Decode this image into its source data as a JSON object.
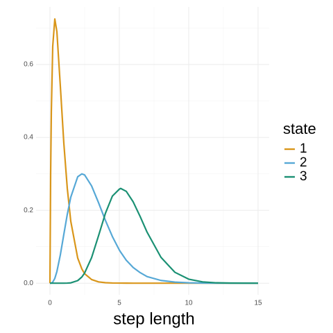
{
  "chart_data": {
    "type": "line",
    "xlabel": "step length",
    "legend_title": "state",
    "x": [
      0,
      0.05,
      0.1,
      0.2,
      0.35,
      0.5,
      0.75,
      1,
      1.25,
      1.5,
      2,
      2.3,
      2.5,
      3,
      3.5,
      4,
      4.5,
      5,
      5.1,
      5.5,
      6,
      6.5,
      7,
      8,
      9,
      10,
      11,
      12,
      13,
      15
    ],
    "series": [
      {
        "name": "1",
        "color": "#d9961a",
        "values": [
          0,
          0.3,
          0.47,
          0.65,
          0.725,
          0.69,
          0.54,
          0.384,
          0.26,
          0.17,
          0.069,
          0.039,
          0.026,
          0.01,
          0.0036,
          0.0013,
          0.0005,
          0.0002,
          0.0002,
          0.0001,
          0,
          0,
          0,
          0,
          0,
          0,
          0,
          0,
          0,
          0
        ]
      },
      {
        "name": "2",
        "color": "#56a8d6",
        "values": [
          0,
          0,
          0.0004,
          0.003,
          0.013,
          0.032,
          0.078,
          0.134,
          0.189,
          0.236,
          0.292,
          0.3,
          0.297,
          0.267,
          0.221,
          0.172,
          0.128,
          0.091,
          0.085,
          0.063,
          0.043,
          0.029,
          0.018,
          0.0075,
          0.003,
          0.001,
          0.0003,
          0.0001,
          0,
          0
        ]
      },
      {
        "name": "3",
        "color": "#1a9073",
        "values": [
          0,
          0,
          0,
          0,
          0,
          0,
          0,
          0,
          0.0002,
          0.0009,
          0.007,
          0.017,
          0.028,
          0.07,
          0.13,
          0.192,
          0.239,
          0.258,
          0.26,
          0.252,
          0.223,
          0.183,
          0.14,
          0.071,
          0.03,
          0.011,
          0.0036,
          0.001,
          0.0003,
          0
        ]
      }
    ],
    "xlim": [
      -1,
      15.8
    ],
    "ylim": [
      -0.032,
      0.758
    ],
    "xticks": [
      0,
      5,
      10,
      15
    ],
    "yticks": [
      {
        "value": 0,
        "label": "0.0"
      },
      0.2,
      0.4,
      0.6
    ],
    "x_minor_ticks": [
      2.5,
      7.5,
      12.5
    ],
    "y_minor_ticks": [
      0.1,
      0.3,
      0.5,
      0.7
    ],
    "grid": true
  }
}
